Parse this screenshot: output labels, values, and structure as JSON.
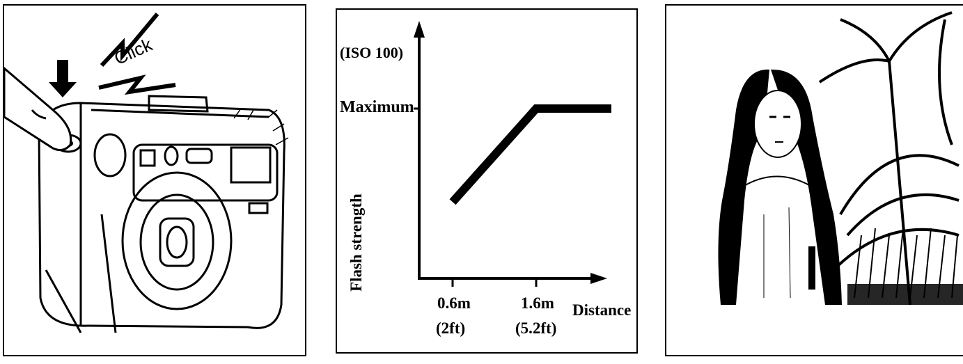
{
  "panels": {
    "camera": {
      "click_text": "Click",
      "icons": [
        "finger-icon",
        "down-arrow-icon",
        "camera-icon",
        "lightning-bolt-icon"
      ]
    },
    "chart": {
      "iso_label": "(ISO 100)",
      "maximum_label": "Maximum",
      "ylabel": "Flash strength",
      "xlabel": "Distance",
      "ticks": [
        {
          "value": "0.6m",
          "alt": "(2ft)"
        },
        {
          "value": "1.6m",
          "alt": "(5.2ft)"
        }
      ]
    },
    "photo": {
      "icons": [
        "person-portrait-icon",
        "palm-tree-icon"
      ]
    }
  },
  "chart_data": {
    "type": "line",
    "title": "",
    "xlabel": "Distance",
    "ylabel": "Flash strength",
    "annotation": "(ISO 100)",
    "x": [
      "0.6m (2ft)",
      "1.6m (5.2ft)",
      ""
    ],
    "y_labels": [
      "Maximum"
    ],
    "series": [
      {
        "points": [
          [
            0.6,
            0.45
          ],
          [
            1.6,
            1.0
          ],
          [
            2.5,
            1.0
          ]
        ]
      }
    ],
    "grid": false
  },
  "colors": {
    "ink": "#000000",
    "paper": "#ffffff"
  }
}
